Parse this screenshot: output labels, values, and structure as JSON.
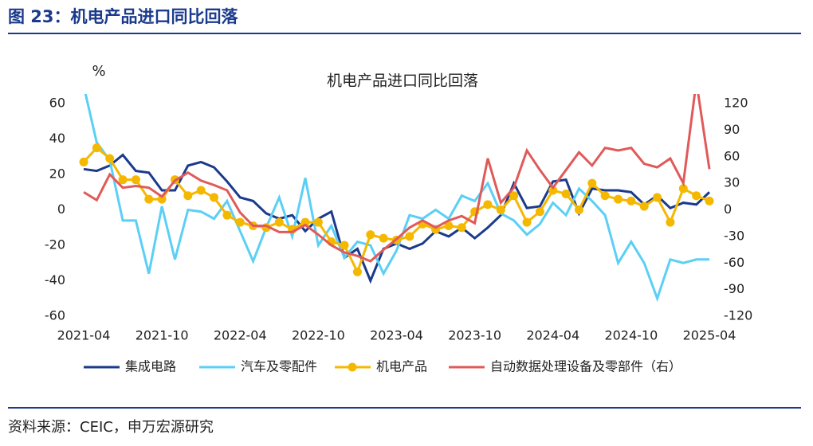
{
  "header": {
    "title": "图 23：机电产品进口同比回落"
  },
  "chart_data": {
    "type": "line",
    "title": "机电产品进口同比回落",
    "ylabel": "%",
    "categories": [
      "2021-04",
      null,
      null,
      null,
      null,
      null,
      "2021-10",
      null,
      null,
      null,
      null,
      null,
      "2022-04",
      null,
      null,
      null,
      null,
      null,
      "2022-10",
      null,
      null,
      null,
      null,
      null,
      "2023-04",
      null,
      null,
      null,
      null,
      null,
      "2023-10",
      null,
      null,
      null,
      null,
      null,
      "2024-04",
      null,
      null,
      null,
      null,
      null,
      "2024-10",
      null,
      null,
      null,
      null,
      null,
      "2025-04"
    ],
    "ylim": [
      -60,
      60
    ],
    "yticks": [
      -60,
      -40,
      -20,
      0,
      20,
      40,
      60
    ],
    "y2lim": [
      -120,
      120
    ],
    "y2ticks": [
      -120,
      -90,
      -60,
      -30,
      0,
      30,
      60,
      90,
      120
    ],
    "grid": false,
    "legend": "bottom",
    "series": [
      {
        "name": "集成电路",
        "color": "#1b3a8c",
        "values": [
          23,
          22,
          25,
          31,
          22,
          21,
          11,
          11,
          25,
          27,
          24,
          16,
          7,
          5,
          -2,
          -5,
          -3,
          -12,
          -5,
          -1,
          -27,
          -22,
          -40,
          -22,
          -19,
          -22,
          -19,
          -12,
          -15,
          -10,
          -16,
          -10,
          -3,
          15,
          1,
          2,
          16,
          17,
          -2,
          12,
          11,
          11,
          10,
          3,
          8,
          1,
          4,
          3,
          10
        ]
      },
      {
        "name": "汽车及零配件",
        "color": "#5bcff5",
        "values": [
          70,
          38,
          28,
          -6,
          -6,
          -36,
          2,
          -28,
          0,
          -1,
          -5,
          5,
          -12,
          -29,
          -10,
          7,
          -15,
          18,
          -20,
          -9,
          -27,
          -18,
          -20,
          -36,
          -23,
          -3,
          -5,
          0,
          -5,
          8,
          5,
          15,
          -2,
          -6,
          -14,
          -8,
          4,
          -3,
          12,
          5,
          -3,
          -30,
          -18,
          -30,
          -50,
          -28,
          -30,
          -28,
          -28
        ]
      },
      {
        "name": "机电产品",
        "color": "#f5b800",
        "markers": true,
        "values": [
          27,
          35,
          29,
          17,
          17,
          6,
          6,
          17,
          8,
          11,
          7,
          -3,
          -7,
          -9,
          -10,
          -7,
          -11,
          -7,
          -7,
          -18,
          -20,
          -35,
          -14,
          -16,
          -17,
          -15,
          -8,
          -11,
          -9,
          -10,
          -1,
          3,
          0,
          8,
          -7,
          -1,
          11,
          9,
          0,
          15,
          8,
          6,
          5,
          2,
          7,
          -7,
          12,
          8,
          5
        ]
      },
      {
        "name": "自动数据处理设备及零部件（右）",
        "color": "#e05a5a",
        "axis": "y2",
        "values": [
          20,
          11,
          40,
          25,
          27,
          25,
          15,
          33,
          42,
          33,
          28,
          22,
          -3,
          -18,
          -18,
          -25,
          -25,
          -17,
          -28,
          -40,
          -48,
          -52,
          -58,
          -45,
          -33,
          -20,
          -12,
          -20,
          -12,
          -7,
          -15,
          58,
          8,
          25,
          67,
          45,
          25,
          45,
          65,
          50,
          70,
          67,
          70,
          52,
          48,
          58,
          30,
          145,
          46
        ]
      }
    ]
  },
  "source": "资料来源：CEIC，申万宏源研究"
}
